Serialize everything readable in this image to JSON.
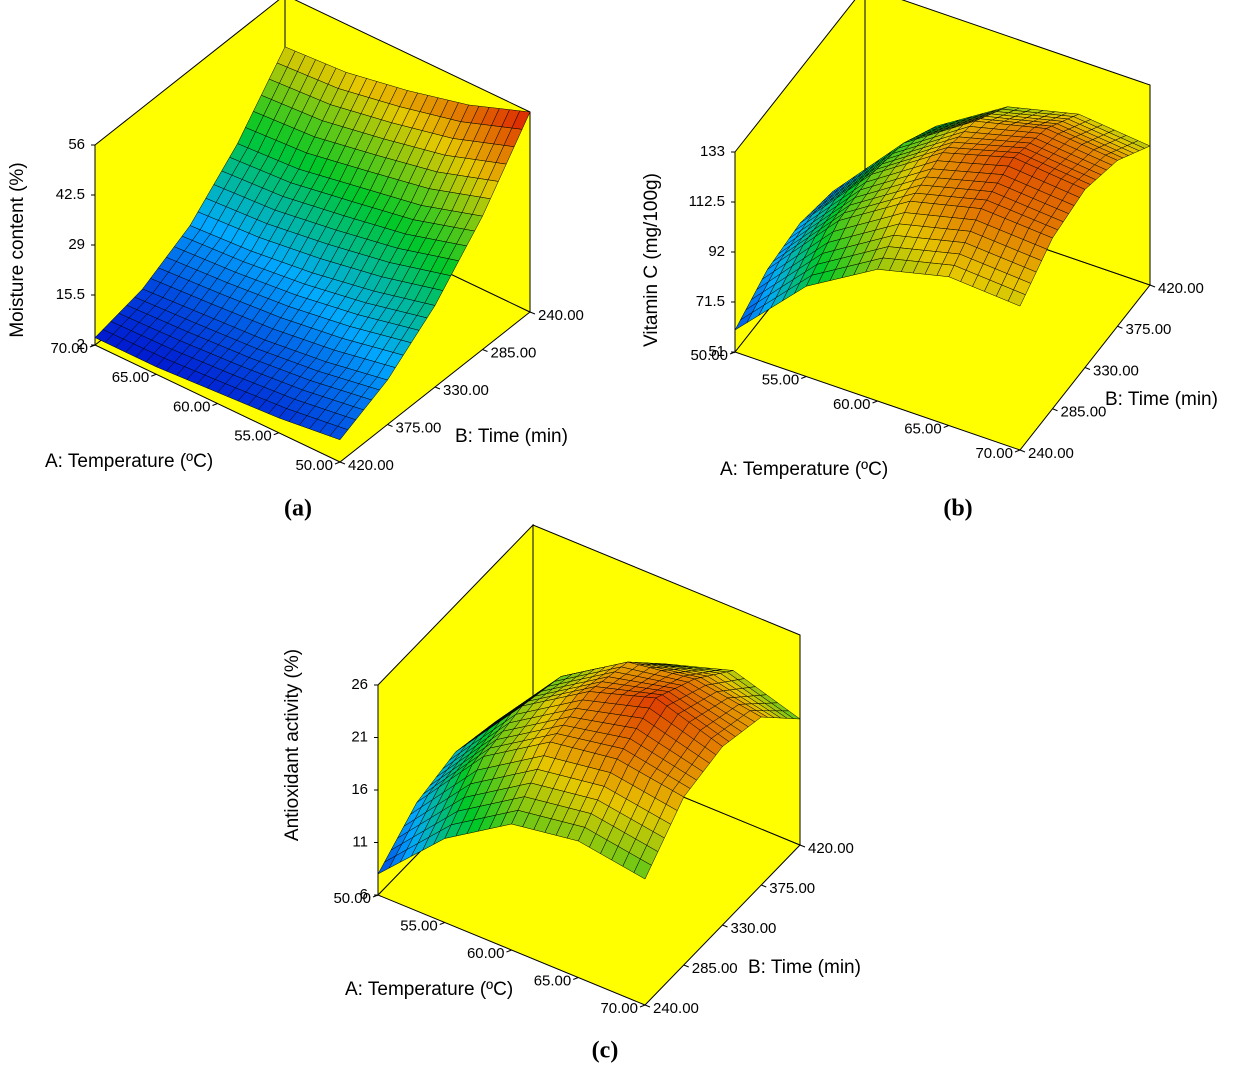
{
  "chart_data": [
    {
      "type": "surface3d",
      "panel_label": "(a)",
      "xlabel": "A: Temperature (ºC)",
      "ylabel": "B: Time (min)",
      "zlabel": "Moisture content (%)",
      "x": [
        50,
        55,
        60,
        65,
        70
      ],
      "y": [
        240,
        285,
        330,
        375,
        420
      ],
      "z": [
        [
          56,
          38,
          24,
          14,
          8
        ],
        [
          50,
          33,
          20,
          11,
          6
        ],
        [
          46,
          30,
          17,
          9,
          5
        ],
        [
          43,
          27,
          15,
          8,
          4
        ],
        [
          42,
          26,
          14,
          7,
          4
        ]
      ],
      "xlim": [
        50,
        70
      ],
      "ylim": [
        240,
        420
      ],
      "zlim": [
        2,
        56
      ],
      "xticks": [
        {
          "value": 50,
          "label": "50.00"
        },
        {
          "value": 55,
          "label": "55.00"
        },
        {
          "value": 60,
          "label": "60.00"
        },
        {
          "value": 65,
          "label": "65.00"
        },
        {
          "value": 70,
          "label": "70.00"
        }
      ],
      "yticks": [
        {
          "value": 240,
          "label": "240.00"
        },
        {
          "value": 285,
          "label": "285.00"
        },
        {
          "value": 330,
          "label": "330.00"
        },
        {
          "value": 375,
          "label": "375.00"
        },
        {
          "value": 420,
          "label": "420.00"
        }
      ],
      "zticks": [
        2,
        15.5,
        29,
        42.5,
        56
      ],
      "wall_color": "#ffff00"
    },
    {
      "type": "surface3d",
      "panel_label": "(b)",
      "xlabel": "A: Temperature (ºC)",
      "ylabel": "B: Time (min)",
      "zlabel": "Vitamin C (mg/100g)",
      "x": [
        50,
        55,
        60,
        65,
        70
      ],
      "y": [
        240,
        285,
        330,
        375,
        420
      ],
      "z": [
        [
          60,
          68,
          70,
          66,
          55
        ],
        [
          88,
          98,
          100,
          96,
          86
        ],
        [
          105,
          116,
          119,
          115,
          104
        ],
        [
          112,
          123,
          127,
          122,
          111
        ],
        [
          110,
          121,
          124,
          119,
          108
        ]
      ],
      "xlim": [
        50,
        70
      ],
      "ylim": [
        240,
        420
      ],
      "zlim": [
        51,
        133
      ],
      "xticks": [
        {
          "value": 50,
          "label": "50.00"
        },
        {
          "value": 55,
          "label": "55.00"
        },
        {
          "value": 60,
          "label": "60.00"
        },
        {
          "value": 65,
          "label": "65.00"
        },
        {
          "value": 70,
          "label": "70.00"
        }
      ],
      "yticks": [
        {
          "value": 240,
          "label": "240.00"
        },
        {
          "value": 285,
          "label": "285.00"
        },
        {
          "value": 330,
          "label": "330.00"
        },
        {
          "value": 375,
          "label": "375.00"
        },
        {
          "value": 420,
          "label": "420.00"
        }
      ],
      "zticks": [
        51,
        71.5,
        92,
        112.5,
        133
      ],
      "wall_color": "#ffff00"
    },
    {
      "type": "surface3d",
      "panel_label": "(c)",
      "xlabel": "A: Temperature (ºC)",
      "ylabel": "B: Time (min)",
      "zlabel": "Antioxidant activity (%)",
      "x": [
        50,
        55,
        60,
        65,
        70
      ],
      "y": [
        240,
        285,
        330,
        375,
        420
      ],
      "z": [
        [
          8,
          11,
          12,
          11,
          8
        ],
        [
          14,
          18,
          19,
          18,
          15
        ],
        [
          18,
          22,
          23,
          22,
          18
        ],
        [
          19,
          23,
          25,
          23,
          20
        ],
        [
          18,
          22,
          23,
          22,
          18
        ]
      ],
      "xlim": [
        50,
        70
      ],
      "ylim": [
        240,
        420
      ],
      "zlim": [
        6,
        26
      ],
      "xticks": [
        {
          "value": 50,
          "label": "50.00"
        },
        {
          "value": 55,
          "label": "55.00"
        },
        {
          "value": 60,
          "label": "60.00"
        },
        {
          "value": 65,
          "label": "65.00"
        },
        {
          "value": 70,
          "label": "70.00"
        }
      ],
      "yticks": [
        {
          "value": 240,
          "label": "240.00"
        },
        {
          "value": 285,
          "label": "285.00"
        },
        {
          "value": 330,
          "label": "330.00"
        },
        {
          "value": 375,
          "label": "375.00"
        },
        {
          "value": 420,
          "label": "420.00"
        }
      ],
      "zticks": [
        6,
        11,
        16,
        21,
        26
      ],
      "wall_color": "#ffff00"
    }
  ]
}
